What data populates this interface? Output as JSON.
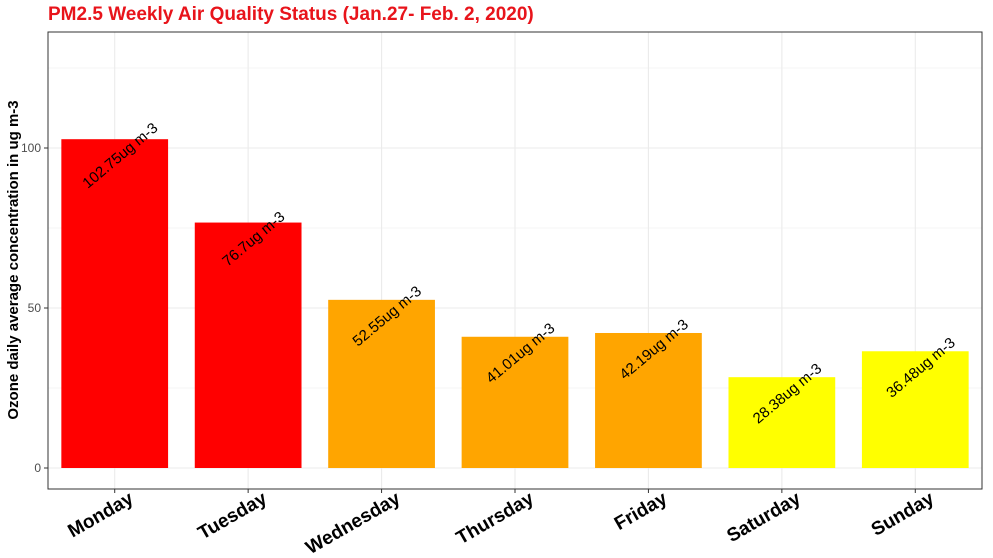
{
  "chart_data": {
    "type": "bar",
    "title": "PM2.5 Weekly Air Quality Status (Jan.27- Feb. 2, 2020)",
    "ylabel": "Ozone daily average concentration in ug m-3",
    "xlabel": "",
    "categories": [
      "Monday",
      "Tuesday",
      "Wednesday",
      "Thursday",
      "Friday",
      "Saturday",
      "Sunday"
    ],
    "values": [
      102.75,
      76.7,
      52.55,
      41.01,
      42.19,
      28.38,
      36.48
    ],
    "data_labels": [
      "102.75ug m-3",
      "76.7ug m-3",
      "52.55ug m-3",
      "41.01ug m-3",
      "42.19ug m-3",
      "28.38ug m-3",
      "36.48ug m-3"
    ],
    "bar_colors": [
      "#ff0000",
      "#ff0000",
      "#ffa500",
      "#ffa500",
      "#ffa500",
      "#ffff00",
      "#ffff00"
    ],
    "title_color": "#e8141b",
    "y_ticks": [
      0,
      50,
      100
    ],
    "y_tick_labels": [
      "0",
      "50",
      "100"
    ],
    "ylim": [
      -6,
      136
    ],
    "grid": true,
    "legend": "none"
  }
}
